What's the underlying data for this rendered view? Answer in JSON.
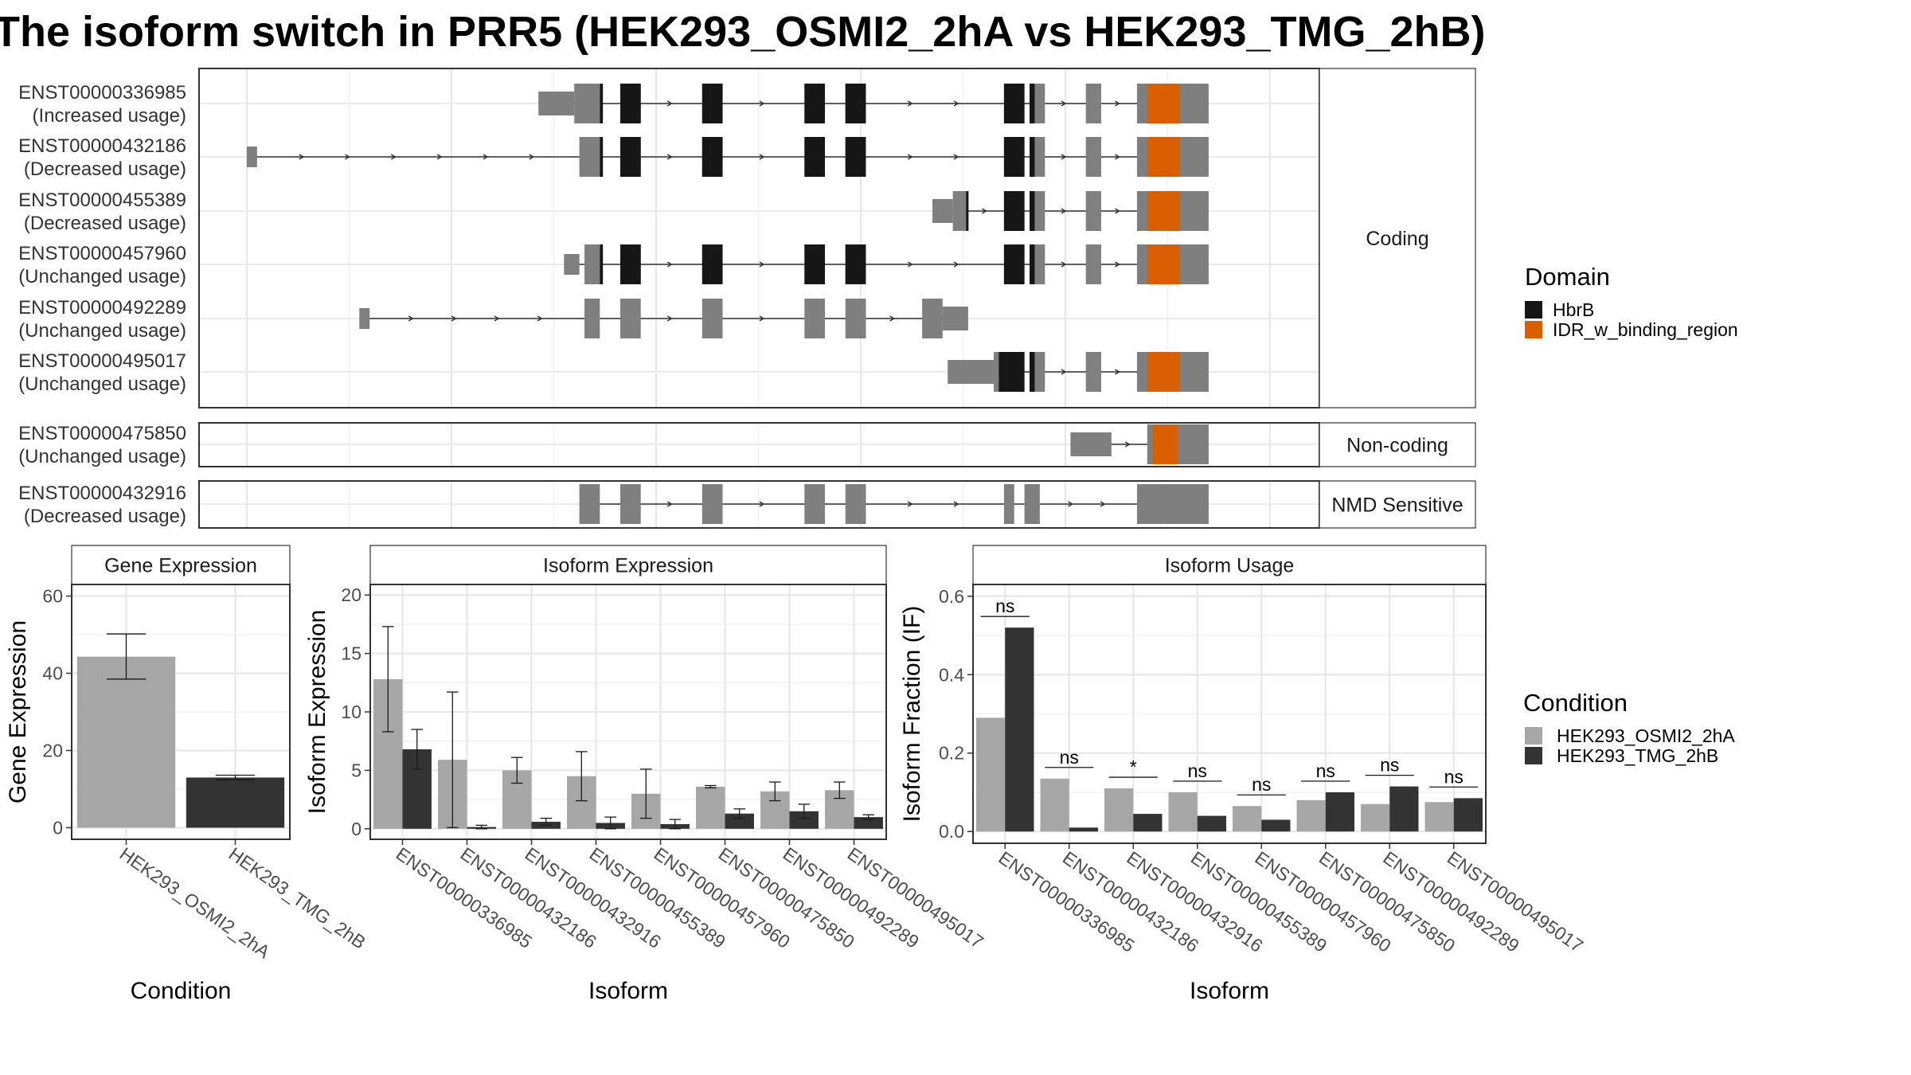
{
  "title": "The isoform switch in PRR5 (HEK293_OSMI2_2hA vs HEK293_TMG_2hB)",
  "colors": {
    "exon": "#7f7f7f",
    "hbrb": "#161616",
    "idr": "#d95f02",
    "cond_a": "#a6a6a6",
    "cond_b": "#333333"
  },
  "structure": {
    "x_domain": [
      0,
      1000
    ],
    "groups": [
      {
        "name": "Coding",
        "transcripts": [
          {
            "id": "ENST00000336985",
            "usage": "(Increased usage)",
            "exons": [
              [
                285,
                320,
                "w"
              ],
              [
                320,
                345,
                "f"
              ],
              [
                365,
                385,
                "f"
              ],
              [
                445,
                465,
                "f"
              ],
              [
                545,
                565,
                "f"
              ],
              [
                585,
                605,
                "f"
              ],
              [
                740,
                760,
                "f"
              ],
              [
                765,
                780,
                "f"
              ],
              [
                820,
                835,
                "f"
              ],
              [
                870,
                900,
                "f"
              ],
              [
                900,
                940,
                "f"
              ]
            ],
            "domains": [
              [
                345,
                348,
                "hbrb"
              ],
              [
                365,
                385,
                "hbrb"
              ],
              [
                445,
                465,
                "hbrb"
              ],
              [
                545,
                565,
                "hbrb"
              ],
              [
                585,
                605,
                "hbrb"
              ],
              [
                740,
                760,
                "hbrb"
              ],
              [
                765,
                770,
                "hbrb"
              ],
              [
                880,
                900,
                "idr"
              ],
              [
                900,
                912,
                "idr"
              ]
            ]
          },
          {
            "id": "ENST00000432186",
            "usage": "(Decreased usage)",
            "exons": [
              [
                0,
                10,
                "n"
              ],
              [
                325,
                345,
                "f"
              ],
              [
                365,
                385,
                "f"
              ],
              [
                445,
                465,
                "f"
              ],
              [
                545,
                565,
                "f"
              ],
              [
                585,
                605,
                "f"
              ],
              [
                740,
                760,
                "f"
              ],
              [
                765,
                780,
                "f"
              ],
              [
                820,
                835,
                "f"
              ],
              [
                870,
                900,
                "f"
              ],
              [
                900,
                940,
                "f"
              ]
            ],
            "domains": [
              [
                345,
                348,
                "hbrb"
              ],
              [
                365,
                385,
                "hbrb"
              ],
              [
                445,
                465,
                "hbrb"
              ],
              [
                545,
                565,
                "hbrb"
              ],
              [
                585,
                605,
                "hbrb"
              ],
              [
                740,
                760,
                "hbrb"
              ],
              [
                765,
                770,
                "hbrb"
              ],
              [
                880,
                900,
                "idr"
              ],
              [
                900,
                912,
                "idr"
              ]
            ]
          },
          {
            "id": "ENST00000455389",
            "usage": "(Decreased usage)",
            "exons": [
              [
                670,
                690,
                "w"
              ],
              [
                690,
                705,
                "f"
              ],
              [
                740,
                760,
                "f"
              ],
              [
                765,
                780,
                "f"
              ],
              [
                820,
                835,
                "f"
              ],
              [
                870,
                900,
                "f"
              ],
              [
                900,
                940,
                "f"
              ]
            ],
            "domains": [
              [
                703,
                705,
                "hbrb"
              ],
              [
                740,
                760,
                "hbrb"
              ],
              [
                765,
                770,
                "hbrb"
              ],
              [
                880,
                900,
                "idr"
              ],
              [
                900,
                912,
                "idr"
              ]
            ]
          },
          {
            "id": "ENST00000457960",
            "usage": "(Unchanged usage)",
            "exons": [
              [
                310,
                325,
                "n"
              ],
              [
                330,
                345,
                "f"
              ],
              [
                365,
                385,
                "f"
              ],
              [
                445,
                465,
                "f"
              ],
              [
                545,
                565,
                "f"
              ],
              [
                585,
                605,
                "f"
              ],
              [
                740,
                760,
                "f"
              ],
              [
                765,
                780,
                "f"
              ],
              [
                820,
                835,
                "f"
              ],
              [
                870,
                900,
                "f"
              ],
              [
                900,
                940,
                "f"
              ]
            ],
            "domains": [
              [
                345,
                348,
                "hbrb"
              ],
              [
                365,
                385,
                "hbrb"
              ],
              [
                445,
                465,
                "hbrb"
              ],
              [
                545,
                565,
                "hbrb"
              ],
              [
                585,
                605,
                "hbrb"
              ],
              [
                740,
                760,
                "hbrb"
              ],
              [
                765,
                770,
                "hbrb"
              ],
              [
                880,
                900,
                "idr"
              ],
              [
                900,
                912,
                "idr"
              ]
            ]
          },
          {
            "id": "ENST00000492289",
            "usage": "(Unchanged usage)",
            "exons": [
              [
                110,
                120,
                "n"
              ],
              [
                330,
                345,
                "f"
              ],
              [
                365,
                385,
                "f"
              ],
              [
                445,
                465,
                "f"
              ],
              [
                545,
                565,
                "f"
              ],
              [
                585,
                605,
                "f"
              ],
              [
                660,
                680,
                "f"
              ],
              [
                680,
                705,
                "w"
              ]
            ],
            "domains": []
          },
          {
            "id": "ENST00000495017",
            "usage": "(Unchanged usage)",
            "exons": [
              [
                685,
                730,
                "w"
              ],
              [
                730,
                760,
                "f"
              ],
              [
                765,
                780,
                "f"
              ],
              [
                820,
                835,
                "f"
              ],
              [
                870,
                900,
                "f"
              ],
              [
                900,
                940,
                "f"
              ]
            ],
            "domains": [
              [
                735,
                760,
                "hbrb"
              ],
              [
                765,
                770,
                "hbrb"
              ],
              [
                880,
                900,
                "idr"
              ],
              [
                900,
                912,
                "idr"
              ]
            ]
          }
        ]
      },
      {
        "name": "Non-coding",
        "transcripts": [
          {
            "id": "ENST00000475850",
            "usage": "(Unchanged usage)",
            "exons": [
              [
                805,
                845,
                "w"
              ],
              [
                880,
                900,
                "f"
              ],
              [
                900,
                940,
                "f"
              ]
            ],
            "domains": [
              [
                885,
                910,
                "idr"
              ]
            ]
          }
        ]
      },
      {
        "name": "NMD Sensitive",
        "transcripts": [
          {
            "id": "ENST00000432916",
            "usage": "(Decreased usage)",
            "exons": [
              [
                325,
                345,
                "f"
              ],
              [
                365,
                385,
                "f"
              ],
              [
                445,
                465,
                "f"
              ],
              [
                545,
                565,
                "f"
              ],
              [
                585,
                605,
                "f"
              ],
              [
                740,
                750,
                "f"
              ],
              [
                760,
                775,
                "f"
              ],
              [
                870,
                940,
                "f"
              ]
            ],
            "domains": []
          }
        ]
      }
    ]
  },
  "domain_legend": {
    "title": "Domain",
    "items": [
      {
        "label": "HbrB",
        "key": "hbrb"
      },
      {
        "label": "IDR_w_binding_region",
        "key": "idr"
      }
    ]
  },
  "condition_legend": {
    "title": "Condition",
    "items": [
      {
        "label": "HEK293_OSMI2_2hA",
        "key": "cond_a"
      },
      {
        "label": "HEK293_TMG_2hB",
        "key": "cond_b"
      }
    ]
  },
  "chart_data": [
    {
      "type": "bar",
      "title": "Gene Expression",
      "xlabel": "Condition",
      "ylabel": "Gene Expression",
      "ylim": [
        -3,
        63
      ],
      "yticks": [
        0,
        20,
        40,
        60
      ],
      "categories": [
        "HEK293_OSMI2_2hA",
        "HEK293_TMG_2hB"
      ],
      "series": [
        {
          "name": "HEK293_OSMI2_2hA",
          "values": [
            44.3,
            null
          ],
          "err": [
            [
              38.5,
              50.2
            ],
            null
          ]
        },
        {
          "name": "HEK293_TMG_2hB",
          "values": [
            null,
            13.0
          ],
          "err": [
            null,
            [
              12.4,
              13.6
            ]
          ]
        }
      ]
    },
    {
      "type": "bar",
      "title": "Isoform Expression",
      "xlabel": "Isoform",
      "ylabel": "Isoform Expression",
      "ylim": [
        -0.9,
        20.9
      ],
      "yticks": [
        0,
        5,
        10,
        15,
        20
      ],
      "categories": [
        "ENST00000336985",
        "ENST00000432186",
        "ENST00000432916",
        "ENST00000455389",
        "ENST00000457960",
        "ENST00000475850",
        "ENST00000492289",
        "ENST00000495017"
      ],
      "series": [
        {
          "name": "HEK293_OSMI2_2hA",
          "values": [
            12.8,
            5.9,
            5.0,
            4.5,
            3.0,
            3.6,
            3.2,
            3.3
          ],
          "err": [
            [
              8.3,
              17.3
            ],
            [
              0.1,
              11.7
            ],
            [
              3.9,
              6.1
            ],
            [
              2.4,
              6.6
            ],
            [
              0.9,
              5.1
            ],
            [
              3.5,
              3.7
            ],
            [
              2.4,
              4.0
            ],
            [
              2.6,
              4.0
            ]
          ]
        },
        {
          "name": "HEK293_TMG_2hB",
          "values": [
            6.8,
            0.15,
            0.6,
            0.5,
            0.4,
            1.3,
            1.5,
            1.0
          ],
          "err": [
            [
              5.1,
              8.5
            ],
            [
              0.0,
              0.3
            ],
            [
              0.3,
              0.9
            ],
            [
              0.0,
              1.0
            ],
            [
              0.0,
              0.8
            ],
            [
              0.9,
              1.7
            ],
            [
              0.9,
              2.1
            ],
            [
              0.8,
              1.2
            ]
          ]
        }
      ]
    },
    {
      "type": "bar",
      "title": "Isoform Usage",
      "xlabel": "Isoform",
      "ylabel": "Isoform Fraction (IF)",
      "ylim": [
        -0.03,
        0.63
      ],
      "yticks": [
        "0.0",
        "0.2",
        "0.4",
        "0.6"
      ],
      "categories": [
        "ENST00000336985",
        "ENST00000432186",
        "ENST00000432916",
        "ENST00000455389",
        "ENST00000457960",
        "ENST00000475850",
        "ENST00000492289",
        "ENST00000495017"
      ],
      "series": [
        {
          "name": "HEK293_OSMI2_2hA",
          "values": [
            0.29,
            0.135,
            0.11,
            0.1,
            0.065,
            0.08,
            0.07,
            0.075
          ]
        },
        {
          "name": "HEK293_TMG_2hB",
          "values": [
            0.52,
            0.01,
            0.045,
            0.04,
            0.03,
            0.1,
            0.115,
            0.085
          ]
        }
      ],
      "significance": [
        "ns",
        "ns",
        "*",
        "ns",
        "ns",
        "ns",
        "ns",
        "ns"
      ]
    }
  ]
}
